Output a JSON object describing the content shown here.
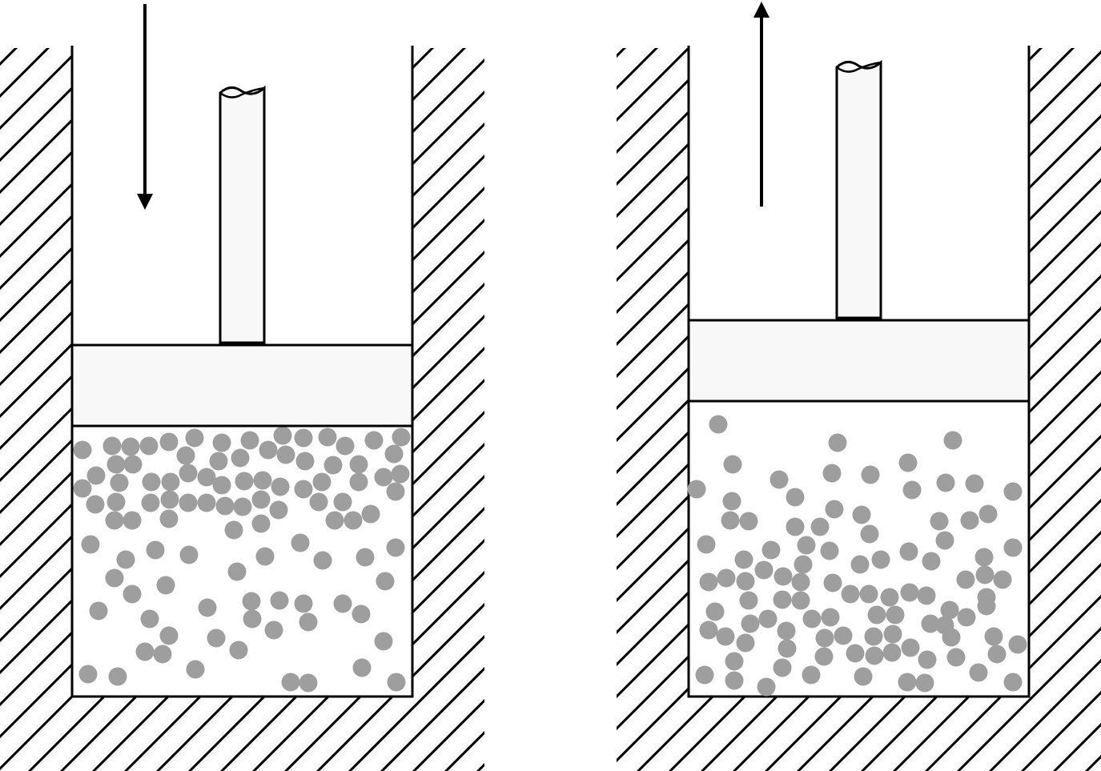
{
  "diagram": {
    "panels": [
      {
        "id": "compression",
        "piston_motion": "down",
        "gas_state": "compressed"
      },
      {
        "id": "expansion",
        "piston_motion": "up",
        "gas_state": "expanded"
      }
    ],
    "colors": {
      "stroke": "#000000",
      "piston_fill": "#f8f8f8",
      "particle_fill": "#9e9e9e",
      "background": "#ffffff"
    },
    "icons": [
      "hatched-wall",
      "piston-rod",
      "piston-head",
      "gas-particle",
      "arrow-down-icon",
      "arrow-up-icon"
    ]
  }
}
